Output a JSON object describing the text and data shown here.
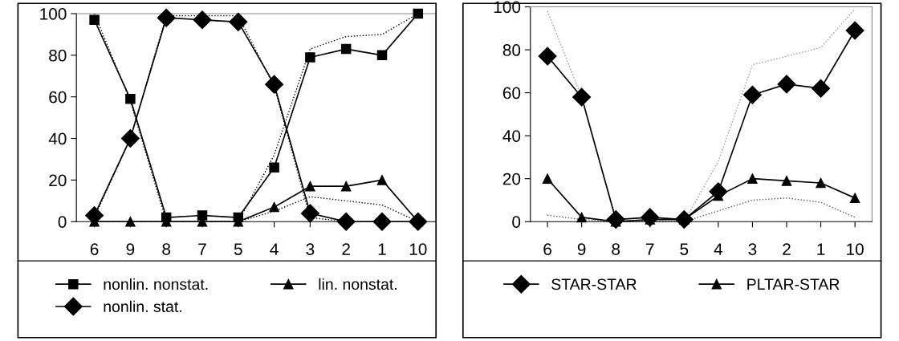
{
  "chart_data": [
    {
      "type": "line",
      "categories": [
        "6",
        "9",
        "8",
        "7",
        "5",
        "4",
        "3",
        "2",
        "1",
        "10"
      ],
      "ylim": [
        0,
        100
      ],
      "yticks": [
        0,
        20,
        40,
        60,
        80,
        100
      ],
      "grid": false,
      "legend": "bottom",
      "series": [
        {
          "name": "nonlin. nonstat.",
          "color": "#000000",
          "marker": "square",
          "line_style": "solid",
          "values": [
            97,
            59,
            2,
            3,
            2,
            26,
            79,
            83,
            80,
            100
          ]
        },
        {
          "name": "lin. nonstat.",
          "color": "#000000",
          "marker": "triangle",
          "line_style": "solid",
          "values": [
            0,
            0,
            0,
            0,
            0,
            7,
            17,
            17,
            20,
            0
          ]
        },
        {
          "name": "nonlin. stat.",
          "color": "#000000",
          "marker": "diamond",
          "line_style": "solid",
          "values": [
            3,
            40,
            98,
            97,
            96,
            66,
            4,
            0,
            0,
            0
          ]
        },
        {
          "color": "#000000",
          "marker": "none",
          "line_style": "dotted",
          "values": [
            100,
            58,
            0,
            0,
            0,
            32,
            83,
            89,
            90,
            100
          ]
        },
        {
          "color": "#000000",
          "marker": "none",
          "line_style": "dotted",
          "values": [
            2,
            40,
            99,
            99,
            99,
            65,
            2,
            0,
            0,
            0
          ]
        },
        {
          "color": "#000000",
          "marker": "none",
          "line_style": "dotted",
          "values": [
            0,
            0,
            0,
            0,
            0,
            5,
            12,
            10,
            8,
            0
          ]
        }
      ]
    },
    {
      "type": "line",
      "categories": [
        "6",
        "9",
        "8",
        "7",
        "5",
        "4",
        "3",
        "2",
        "1",
        "10"
      ],
      "ylim": [
        0,
        100
      ],
      "yticks": [
        0,
        20,
        40,
        60,
        80,
        100
      ],
      "grid": false,
      "legend": "bottom",
      "series": [
        {
          "name": "STAR-STAR",
          "color": "#000000",
          "marker": "diamond",
          "line_style": "solid",
          "values": [
            77,
            58,
            1,
            2,
            1,
            14,
            59,
            64,
            62,
            89
          ]
        },
        {
          "name": "PLTAR-STAR",
          "color": "#000000",
          "marker": "triangle",
          "line_style": "solid",
          "values": [
            20,
            2,
            0,
            1,
            1,
            12,
            20,
            19,
            18,
            11
          ]
        },
        {
          "color": "#999999",
          "marker": "none",
          "line_style": "dotted",
          "values": [
            98,
            58,
            1,
            0,
            0,
            28,
            73,
            77,
            81,
            99
          ]
        },
        {
          "color": "#555555",
          "marker": "none",
          "line_style": "dotted",
          "values": [
            3,
            1,
            0,
            0,
            0,
            5,
            10,
            11,
            9,
            2
          ]
        }
      ]
    }
  ]
}
